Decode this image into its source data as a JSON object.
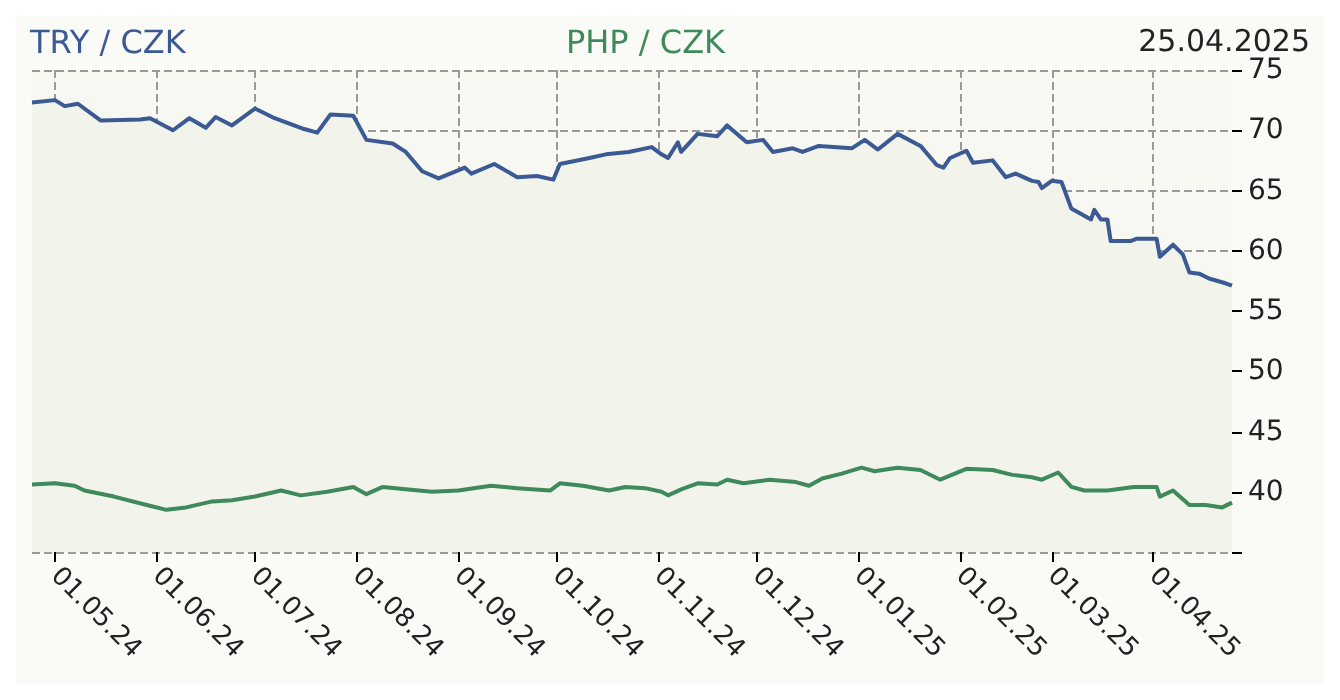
{
  "chart_data": {
    "type": "line",
    "title": "25.04.2025",
    "xlim": [
      "2024-04-24",
      "2025-04-25"
    ],
    "series": [
      {
        "name": "TRY / CZK",
        "color": "#3b5a94",
        "x": [
          "2024-04-24",
          "2024-05-01",
          "2024-05-04",
          "2024-05-08",
          "2024-05-15",
          "2024-05-27",
          "2024-05-30",
          "2024-06-06",
          "2024-06-11",
          "2024-06-16",
          "2024-06-19",
          "2024-06-24",
          "2024-07-01",
          "2024-07-07",
          "2024-07-16",
          "2024-07-20",
          "2024-07-24",
          "2024-07-31",
          "2024-08-04",
          "2024-08-12",
          "2024-08-16",
          "2024-08-21",
          "2024-08-26",
          "2024-09-03",
          "2024-09-05",
          "2024-09-12",
          "2024-09-19",
          "2024-09-25",
          "2024-09-30",
          "2024-10-02",
          "2024-10-11",
          "2024-10-16",
          "2024-10-23",
          "2024-10-30",
          "2024-11-02",
          "2024-11-04",
          "2024-11-07",
          "2024-11-08",
          "2024-11-13",
          "2024-11-19",
          "2024-11-22",
          "2024-11-28",
          "2024-12-03",
          "2024-12-06",
          "2024-12-12",
          "2024-12-15",
          "2024-12-20",
          "2024-12-30",
          "2025-01-03",
          "2025-01-07",
          "2025-01-13",
          "2025-01-20",
          "2025-01-25",
          "2025-01-27",
          "2025-01-29",
          "2025-02-03",
          "2025-02-05",
          "2025-02-11",
          "2025-02-15",
          "2025-02-18",
          "2025-02-23",
          "2025-02-25",
          "2025-02-26",
          "2025-03-01",
          "2025-03-04",
          "2025-03-07",
          "2025-03-13",
          "2025-03-14",
          "2025-03-16",
          "2025-03-18",
          "2025-03-19",
          "2025-03-25",
          "2025-03-27",
          "2025-04-02",
          "2025-04-03",
          "2025-04-07",
          "2025-04-10",
          "2025-04-12",
          "2025-04-15",
          "2025-04-18",
          "2025-04-23",
          "2025-04-25"
        ],
        "values": [
          72.3,
          72.5,
          72.0,
          72.2,
          70.8,
          70.9,
          71.0,
          70.0,
          71.0,
          70.2,
          71.1,
          70.4,
          71.8,
          71.0,
          70.1,
          69.8,
          71.3,
          71.2,
          69.2,
          68.9,
          68.2,
          66.6,
          66.0,
          66.9,
          66.4,
          67.2,
          66.1,
          66.2,
          65.9,
          67.2,
          67.7,
          68.0,
          68.2,
          68.6,
          68.0,
          67.7,
          69.0,
          68.2,
          69.7,
          69.5,
          70.4,
          69.0,
          69.2,
          68.2,
          68.5,
          68.2,
          68.7,
          68.5,
          69.2,
          68.4,
          69.7,
          68.7,
          67.1,
          66.9,
          67.7,
          68.3,
          67.3,
          67.5,
          66.1,
          66.4,
          65.8,
          65.7,
          65.2,
          65.8,
          65.7,
          63.5,
          62.6,
          63.4,
          62.6,
          62.6,
          60.8,
          60.8,
          61.0,
          61.0,
          59.5,
          60.5,
          59.7,
          58.2,
          58.1,
          57.7,
          57.3,
          57.1
        ]
      },
      {
        "name": "PHP / CZK",
        "color": "#3f8a5a",
        "x": [
          "2024-04-24",
          "2024-05-01",
          "2024-05-07",
          "2024-05-10",
          "2024-05-19",
          "2024-05-29",
          "2024-06-04",
          "2024-06-10",
          "2024-06-18",
          "2024-06-24",
          "2024-07-01",
          "2024-07-09",
          "2024-07-15",
          "2024-07-23",
          "2024-07-31",
          "2024-08-04",
          "2024-08-09",
          "2024-08-16",
          "2024-08-24",
          "2024-09-01",
          "2024-09-11",
          "2024-09-19",
          "2024-09-29",
          "2024-10-02",
          "2024-10-09",
          "2024-10-17",
          "2024-10-22",
          "2024-10-28",
          "2024-11-02",
          "2024-11-04",
          "2024-11-08",
          "2024-11-13",
          "2024-11-19",
          "2024-11-22",
          "2024-11-27",
          "2024-12-05",
          "2024-12-13",
          "2024-12-17",
          "2024-12-21",
          "2024-12-27",
          "2025-01-02",
          "2025-01-06",
          "2025-01-13",
          "2025-01-20",
          "2025-01-26",
          "2025-02-03",
          "2025-02-11",
          "2025-02-17",
          "2025-02-23",
          "2025-02-26",
          "2025-03-03",
          "2025-03-07",
          "2025-03-11",
          "2025-03-18",
          "2025-03-26",
          "2025-04-02",
          "2025-04-03",
          "2025-04-07",
          "2025-04-12",
          "2025-04-17",
          "2025-04-22",
          "2025-04-25"
        ],
        "values": [
          40.6,
          40.7,
          40.5,
          40.1,
          39.6,
          38.9,
          38.5,
          38.7,
          39.2,
          39.3,
          39.6,
          40.1,
          39.7,
          40.0,
          40.4,
          39.8,
          40.4,
          40.2,
          40.0,
          40.1,
          40.5,
          40.3,
          40.1,
          40.7,
          40.5,
          40.1,
          40.4,
          40.3,
          40.0,
          39.7,
          40.2,
          40.7,
          40.6,
          41.0,
          40.7,
          41.0,
          40.8,
          40.5,
          41.1,
          41.5,
          42.0,
          41.7,
          42.0,
          41.8,
          41.0,
          41.9,
          41.8,
          41.4,
          41.2,
          41.0,
          41.6,
          40.4,
          40.1,
          40.1,
          40.4,
          40.4,
          39.6,
          40.1,
          38.9,
          38.9,
          38.7,
          39.1
        ]
      }
    ],
    "ylim": [
      35,
      75
    ],
    "yticks": [
      {
        "value": 35,
        "label": null
      },
      40,
      45,
      50,
      55,
      60,
      65,
      70,
      75
    ],
    "xticks": [
      {
        "value": "2024-05-01",
        "label": "01.05.24"
      },
      {
        "value": "2024-06-01",
        "label": "01.06.24"
      },
      {
        "value": "2024-07-01",
        "label": "01.07.24"
      },
      {
        "value": "2024-08-01",
        "label": "01.08.24"
      },
      {
        "value": "2024-09-01",
        "label": "01.09.24"
      },
      {
        "value": "2024-10-01",
        "label": "01.10.24"
      },
      {
        "value": "2024-11-01",
        "label": "01.11.24"
      },
      {
        "value": "2024-12-01",
        "label": "01.12.24"
      },
      {
        "value": "2025-01-01",
        "label": "01.01.25"
      },
      {
        "value": "2025-02-01",
        "label": "01.02.25"
      },
      {
        "value": "2025-03-01",
        "label": "01.03.25"
      },
      {
        "value": "2025-04-01",
        "label": "01.04.25"
      }
    ],
    "grid": true,
    "marker": "none",
    "line_style": "solid"
  }
}
